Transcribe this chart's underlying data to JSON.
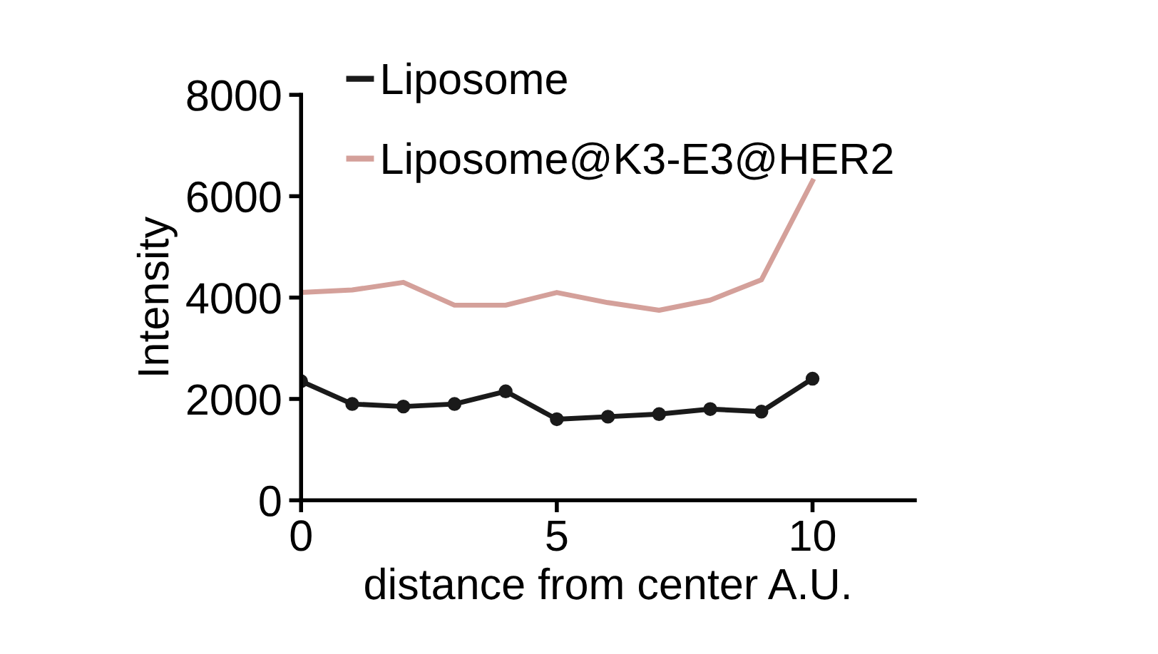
{
  "chart_data": {
    "type": "line",
    "xlabel": "distance from center A.U.",
    "ylabel": "Intensity",
    "x": [
      0,
      1,
      2,
      3,
      4,
      5,
      6,
      7,
      8,
      9,
      10
    ],
    "xlim": [
      0,
      12
    ],
    "xticks": [
      0,
      5,
      10
    ],
    "ylim": [
      0,
      8000
    ],
    "yticks": [
      0,
      2000,
      4000,
      6000,
      8000
    ],
    "grid": false,
    "legend": "top left",
    "series": [
      {
        "name": "Liposome",
        "color": "#1a1a1a",
        "marker": "circle",
        "values": [
          2350,
          1900,
          1850,
          1900,
          2150,
          1600,
          1650,
          1700,
          1800,
          1750,
          2400
        ]
      },
      {
        "name": "Liposome@K3-E3@HER2",
        "color": "#d4a09a",
        "marker": "none",
        "values": [
          4100,
          4150,
          4300,
          3850,
          3850,
          4100,
          3900,
          3750,
          3950,
          4350,
          6300
        ]
      }
    ]
  }
}
